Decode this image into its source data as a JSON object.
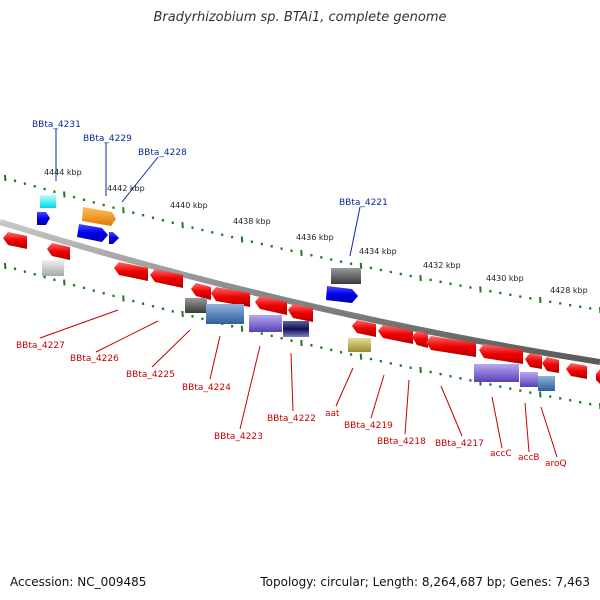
{
  "title": "Bradyrhizobium sp. BTAi1, complete genome",
  "footer": {
    "accession": "Accession: NC_009485",
    "topology": "Topology: circular; Length: 8,264,687 bp; Genes: 7,463"
  },
  "colors": {
    "backbone": "#8a8a8a",
    "ticks": "#1f7a1f",
    "top_label": "#0a2a9a",
    "bottom_label": "#c80000"
  },
  "kbp_labels": [
    "4444 kbp",
    "4442 kbp",
    "4440 kbp",
    "4438 kbp",
    "4436 kbp",
    "4434 kbp",
    "4432 kbp",
    "4430 kbp",
    "4428 kbp"
  ],
  "top_gene_labels": [
    "BBta_4231",
    "BBta_4229",
    "BBta_4228",
    "BBta_4221"
  ],
  "bottom_gene_labels": [
    "BBta_4227",
    "BBta_4226",
    "BBta_4225",
    "BBta_4224",
    "BBta_4223",
    "BBta_4222",
    "aat",
    "BBta_4219",
    "BBta_4218",
    "BBta_4217",
    "accC",
    "accB",
    "aroQ"
  ]
}
